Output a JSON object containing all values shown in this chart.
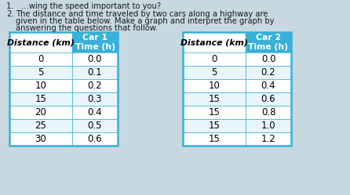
{
  "text_line1": "wing the speed important to you?",
  "text_line2": "The distance and time traveled by two cars along a highway are",
  "text_line3": "given in the table below. Make a graph and interpret the graph by",
  "text_line4": "answering the questions that follow.",
  "number_prefix1": "1.",
  "number_prefix2": "2.",
  "table1_header_col1": "Distance (km)",
  "table1_header_col2": "Car 1\nTime (h)",
  "table2_header_col1": "Distance (km)",
  "table2_header_col2": "Car 2\nTime (h)",
  "table1_data": [
    [
      0,
      "0.0"
    ],
    [
      5,
      "0.1"
    ],
    [
      10,
      "0.2"
    ],
    [
      15,
      "0.3"
    ],
    [
      20,
      "0.4"
    ],
    [
      25,
      "0.5"
    ],
    [
      30,
      "0.6"
    ]
  ],
  "table2_data": [
    [
      0,
      "0.0"
    ],
    [
      5,
      "0.2"
    ],
    [
      10,
      "0.4"
    ],
    [
      15,
      "0.6"
    ],
    [
      15,
      "0.8"
    ],
    [
      15,
      "1.0"
    ],
    [
      15,
      "1.2"
    ]
  ],
  "header_blue": "#38b0d8",
  "header_col1_bg": "#ffffff",
  "row_bg_white": "#ffffff",
  "row_bg_light": "#e8f5fb",
  "table_border_color": "#38b0d8",
  "text_color": "#1a1a1a",
  "page_color": "#c8d8e0",
  "font_size_text": 7.2,
  "font_size_table_data": 8.5,
  "font_size_header": 7.8
}
